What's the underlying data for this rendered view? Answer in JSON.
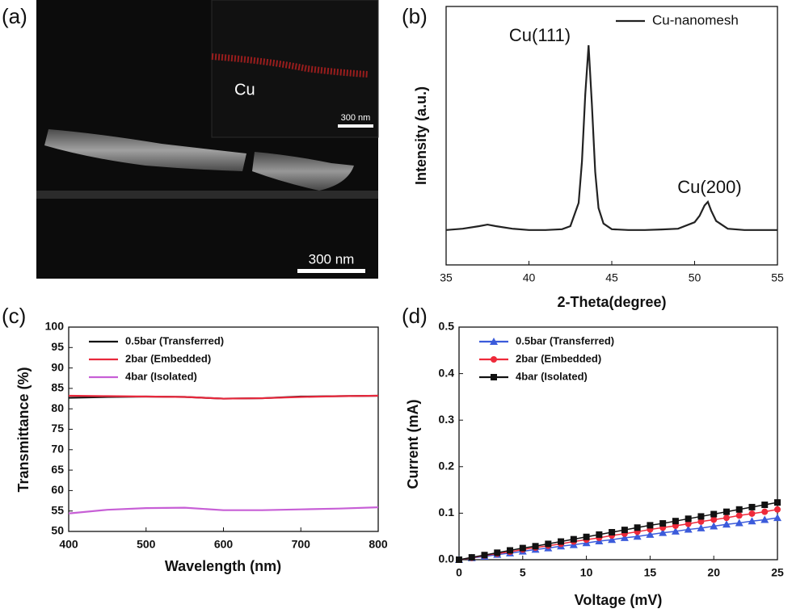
{
  "chart_data": [
    {
      "type": "image",
      "panel_label": "(a)",
      "annotations": [
        "Cu",
        "300 nm",
        "300 nm"
      ]
    },
    {
      "type": "line",
      "panel_label": "(b)",
      "xlabel": "2-Theta(degree)",
      "ylabel": "Intensity (a.u.)",
      "xlim": [
        35,
        55
      ],
      "xticks": [
        35,
        40,
        45,
        50,
        55
      ],
      "ylim": [
        0,
        100
      ],
      "legend": "upper right",
      "annotations": [
        "Cu(111)",
        "Cu(200)"
      ],
      "x": [
        35,
        36,
        37,
        37.5,
        38,
        39,
        40,
        41,
        42,
        42.5,
        43,
        43.2,
        43.4,
        43.6,
        43.8,
        44,
        44.2,
        44.5,
        45,
        46,
        47,
        48,
        49,
        50,
        50.3,
        50.6,
        50.8,
        51,
        51.3,
        52,
        53,
        54,
        55
      ],
      "series": [
        {
          "name": "Cu-nanomesh",
          "color": "#222222",
          "values": [
            13.5,
            14,
            15,
            15.6,
            15,
            14,
            13.5,
            13.5,
            13.8,
            15,
            24,
            40,
            66,
            85,
            62,
            36,
            22,
            16,
            13.8,
            13.5,
            13.5,
            13.7,
            14,
            16.5,
            19,
            23,
            24.4,
            21,
            17,
            14,
            13.5,
            13.5,
            13.5
          ]
        }
      ]
    },
    {
      "type": "line",
      "panel_label": "(c)",
      "xlabel": "Wavelength (nm)",
      "ylabel": "Transmittance (%)",
      "xlim": [
        400,
        800
      ],
      "xticks": [
        400,
        500,
        600,
        700,
        800
      ],
      "ylim": [
        50,
        100
      ],
      "yticks": [
        50,
        55,
        60,
        65,
        70,
        75,
        80,
        85,
        90,
        95,
        100
      ],
      "legend": "upper left",
      "x": [
        400,
        450,
        500,
        550,
        600,
        650,
        700,
        750,
        800
      ],
      "series": [
        {
          "name": "0.5bar (Transferred)",
          "color": "#111111",
          "values": [
            82.7,
            82.9,
            83,
            82.9,
            82.5,
            82.6,
            83,
            83.1,
            83.2
          ]
        },
        {
          "name": "2bar (Embedded)",
          "color": "#e8283c",
          "values": [
            83.2,
            83.1,
            83,
            82.9,
            82.5,
            82.6,
            82.9,
            83.1,
            83.2
          ]
        },
        {
          "name": "4bar (Isolated)",
          "color": "#c75fd6",
          "values": [
            54.4,
            55.3,
            55.7,
            55.8,
            55.2,
            55.2,
            55.4,
            55.6,
            55.9
          ]
        }
      ]
    },
    {
      "type": "line",
      "panel_label": "(d)",
      "xlabel": "Voltage (mV)",
      "ylabel": "Current (mA)",
      "xlim": [
        0,
        25
      ],
      "xticks": [
        0,
        5,
        10,
        15,
        20,
        25
      ],
      "ylim": [
        0,
        0.5
      ],
      "yticks": [
        {
          "value": 0,
          "label": "0.0"
        },
        0.1,
        0.2,
        0.3,
        0.4,
        0.5
      ],
      "legend": "upper left",
      "x": [
        0,
        1,
        2,
        3,
        4,
        5,
        6,
        7,
        8,
        9,
        10,
        11,
        12,
        13,
        14,
        15,
        16,
        17,
        18,
        19,
        20,
        21,
        22,
        23,
        24,
        25
      ],
      "series": [
        {
          "name": "0.5bar (Transferred)",
          "color": "#3b5bdb",
          "marker": "triangle",
          "values": [
            0,
            0.004,
            0.007,
            0.011,
            0.014,
            0.018,
            0.022,
            0.025,
            0.029,
            0.032,
            0.036,
            0.04,
            0.043,
            0.047,
            0.05,
            0.054,
            0.058,
            0.061,
            0.065,
            0.068,
            0.072,
            0.076,
            0.079,
            0.083,
            0.086,
            0.09
          ]
        },
        {
          "name": "2bar (Embedded)",
          "color": "#ee2a3a",
          "marker": "circle",
          "values": [
            0,
            0.004,
            0.009,
            0.013,
            0.017,
            0.022,
            0.026,
            0.03,
            0.034,
            0.039,
            0.043,
            0.047,
            0.052,
            0.056,
            0.06,
            0.065,
            0.069,
            0.073,
            0.077,
            0.082,
            0.086,
            0.09,
            0.095,
            0.099,
            0.103,
            0.108
          ]
        },
        {
          "name": "4bar (Isolated)",
          "color": "#111111",
          "marker": "square",
          "values": [
            0,
            0.005,
            0.01,
            0.015,
            0.02,
            0.025,
            0.029,
            0.034,
            0.039,
            0.044,
            0.049,
            0.054,
            0.059,
            0.064,
            0.069,
            0.074,
            0.078,
            0.083,
            0.088,
            0.093,
            0.098,
            0.103,
            0.108,
            0.113,
            0.118,
            0.123
          ]
        }
      ]
    }
  ]
}
